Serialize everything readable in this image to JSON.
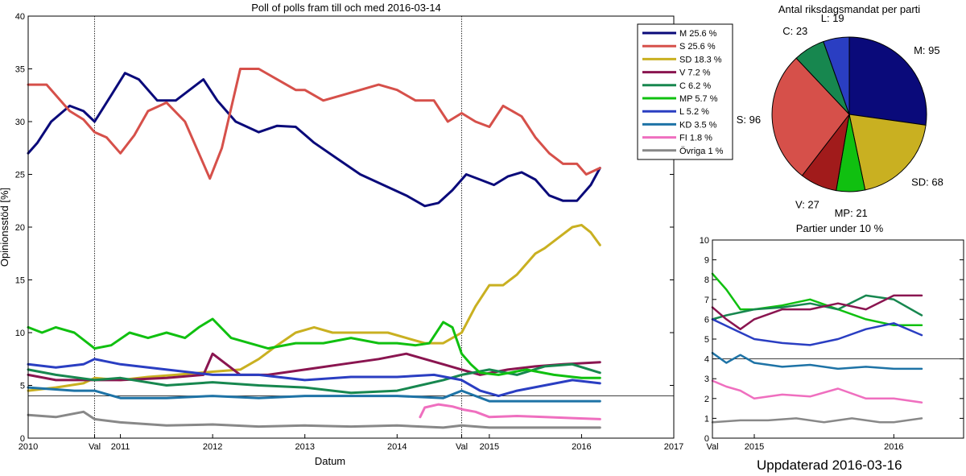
{
  "footer": "Uppdaterad 2016-03-16",
  "chart_data": [
    {
      "type": "line",
      "title": "Poll of polls fram till och med 2016-03-14",
      "xlabel": "Datum",
      "ylabel": "Opinionsstöd [%]",
      "xlim": [
        2010.0,
        2017.0
      ],
      "ylim": [
        0,
        40
      ],
      "yticks": [
        0,
        5,
        10,
        15,
        20,
        25,
        30,
        35,
        40
      ],
      "xticks": [
        {
          "x": 2010.0,
          "label": "2010"
        },
        {
          "x": 2010.72,
          "label": "Val"
        },
        {
          "x": 2011.0,
          "label": "2011"
        },
        {
          "x": 2012.0,
          "label": "2012"
        },
        {
          "x": 2013.0,
          "label": "2013"
        },
        {
          "x": 2014.0,
          "label": "2014"
        },
        {
          "x": 2014.7,
          "label": "Val"
        },
        {
          "x": 2015.0,
          "label": "2015"
        },
        {
          "x": 2016.0,
          "label": "2016"
        },
        {
          "x": 2017.0,
          "label": "2017"
        }
      ],
      "vlines": [
        2010.72,
        2014.7
      ],
      "hline": 4,
      "grid": false,
      "legend_position": "top-right",
      "series": [
        {
          "name": "M 25.6 %",
          "color": "#0a0a7a",
          "x": [
            2010.0,
            2010.1,
            2010.25,
            2010.45,
            2010.6,
            2010.72,
            2010.9,
            2011.05,
            2011.2,
            2011.4,
            2011.6,
            2011.75,
            2011.9,
            2012.05,
            2012.25,
            2012.5,
            2012.7,
            2012.9,
            2013.1,
            2013.35,
            2013.6,
            2013.85,
            2014.1,
            2014.3,
            2014.45,
            2014.6,
            2014.75,
            2014.9,
            2015.05,
            2015.2,
            2015.35,
            2015.5,
            2015.65,
            2015.8,
            2015.95,
            2016.1,
            2016.2
          ],
          "y": [
            27,
            28,
            30,
            31.5,
            31,
            30,
            32.5,
            34.6,
            34,
            32,
            32,
            33,
            34,
            32,
            30,
            29,
            29.6,
            29.5,
            28,
            26.5,
            25,
            24,
            23,
            22,
            22.3,
            23.5,
            25,
            24.5,
            24,
            24.8,
            25.2,
            24.5,
            23,
            22.5,
            22.5,
            24,
            25.6
          ]
        },
        {
          "name": "S 25.6 %",
          "color": "#d6504a",
          "x": [
            2010.0,
            2010.2,
            2010.45,
            2010.6,
            2010.72,
            2010.85,
            2011.0,
            2011.15,
            2011.3,
            2011.5,
            2011.7,
            2011.85,
            2011.97,
            2012.1,
            2012.3,
            2012.5,
            2012.7,
            2012.9,
            2013.0,
            2013.2,
            2013.4,
            2013.6,
            2013.8,
            2014.0,
            2014.2,
            2014.4,
            2014.55,
            2014.7,
            2014.85,
            2015.0,
            2015.15,
            2015.35,
            2015.5,
            2015.65,
            2015.8,
            2015.95,
            2016.05,
            2016.2
          ],
          "y": [
            33.5,
            33.5,
            31,
            30.2,
            29,
            28.5,
            27,
            28.7,
            31,
            31.8,
            30,
            27,
            24.6,
            27.5,
            35,
            35,
            34,
            33,
            33,
            32,
            32.5,
            33,
            33.5,
            33,
            32,
            32,
            30,
            30.8,
            30,
            29.5,
            31.5,
            30.5,
            28.5,
            27,
            26,
            26,
            25,
            25.6
          ]
        },
        {
          "name": "SD 18.3 %",
          "color": "#c9b021",
          "x": [
            2010.0,
            2010.3,
            2010.6,
            2010.72,
            2011.0,
            2011.3,
            2011.6,
            2012.0,
            2012.3,
            2012.5,
            2012.7,
            2012.9,
            2013.1,
            2013.3,
            2013.5,
            2013.7,
            2013.9,
            2014.1,
            2014.3,
            2014.5,
            2014.7,
            2014.85,
            2015.0,
            2015.15,
            2015.3,
            2015.5,
            2015.6,
            2015.75,
            2015.9,
            2016.0,
            2016.1,
            2016.2
          ],
          "y": [
            4.5,
            4.8,
            5.2,
            5.7,
            5.5,
            5.8,
            6,
            6.3,
            6.5,
            7.5,
            8.8,
            10,
            10.5,
            10,
            10,
            10,
            10,
            9.5,
            9,
            9,
            10,
            12.5,
            14.5,
            14.5,
            15.5,
            17.5,
            18,
            19,
            20,
            20.2,
            19.5,
            18.3
          ]
        },
        {
          "name": "V 7.2 %",
          "color": "#8a1550",
          "x": [
            2010.0,
            2010.3,
            2010.72,
            2011.0,
            2011.5,
            2011.9,
            2012.0,
            2012.3,
            2012.6,
            2013.0,
            2013.4,
            2013.8,
            2014.1,
            2014.3,
            2014.5,
            2014.7,
            2014.9,
            2015.2,
            2015.5,
            2015.8,
            2016.2
          ],
          "y": [
            6,
            5.5,
            5.5,
            5.5,
            5.7,
            6,
            8,
            6,
            6,
            6.5,
            7,
            7.5,
            8,
            7.5,
            7,
            6.5,
            6,
            6.5,
            6.8,
            7,
            7.2
          ]
        },
        {
          "name": "C 6.2 %",
          "color": "#17874f",
          "x": [
            2010.0,
            2010.3,
            2010.72,
            2011.0,
            2011.5,
            2012.0,
            2012.5,
            2013.0,
            2013.5,
            2014.0,
            2014.5,
            2014.7,
            2015.0,
            2015.3,
            2015.6,
            2015.9,
            2016.2
          ],
          "y": [
            6.5,
            6,
            5.5,
            5.7,
            5,
            5.3,
            5,
            4.8,
            4.3,
            4.5,
            5.5,
            6,
            6.5,
            6,
            6.8,
            7,
            6.2
          ]
        },
        {
          "name": "MP 5.7 %",
          "color": "#10c010",
          "x": [
            2010.0,
            2010.15,
            2010.3,
            2010.5,
            2010.72,
            2010.9,
            2011.1,
            2011.3,
            2011.5,
            2011.7,
            2011.85,
            2012.0,
            2012.2,
            2012.4,
            2012.6,
            2012.9,
            2013.2,
            2013.5,
            2013.8,
            2014.0,
            2014.2,
            2014.35,
            2014.5,
            2014.6,
            2014.7,
            2014.8,
            2014.9,
            2015.1,
            2015.4,
            2015.7,
            2016.0,
            2016.2
          ],
          "y": [
            10.5,
            10,
            10.5,
            10,
            8.5,
            8.8,
            10,
            9.5,
            10,
            9.5,
            10.5,
            11.3,
            9.5,
            9,
            8.5,
            9,
            9,
            9.5,
            9,
            9,
            8.8,
            9,
            11,
            10.5,
            8,
            7,
            6.2,
            6,
            6.5,
            6,
            5.7,
            5.7
          ]
        },
        {
          "name": "L 5.2 %",
          "color": "#2a3ec2",
          "x": [
            2010.0,
            2010.3,
            2010.6,
            2010.72,
            2011.0,
            2011.5,
            2012.0,
            2012.5,
            2013.0,
            2013.5,
            2014.0,
            2014.4,
            2014.7,
            2014.9,
            2015.1,
            2015.3,
            2015.6,
            2015.9,
            2016.2
          ],
          "y": [
            7,
            6.7,
            7,
            7.5,
            7,
            6.5,
            6,
            6,
            5.5,
            5.8,
            5.8,
            6,
            5.5,
            4.5,
            4,
            4.5,
            5,
            5.5,
            5.2
          ]
        },
        {
          "name": "KD 3.5 %",
          "color": "#1e73a6",
          "x": [
            2010.0,
            2010.5,
            2010.72,
            2011.0,
            2011.5,
            2012.0,
            2012.5,
            2013.0,
            2013.5,
            2014.0,
            2014.5,
            2014.7,
            2015.0,
            2015.5,
            2016.0,
            2016.2
          ],
          "y": [
            4.8,
            4.5,
            4.5,
            3.8,
            3.8,
            4,
            3.8,
            4,
            4,
            4,
            3.8,
            4.5,
            3.5,
            3.5,
            3.5,
            3.5
          ]
        },
        {
          "name": "FI 1.8 %",
          "color": "#ef6fbf",
          "x": [
            2014.25,
            2014.3,
            2014.45,
            2014.6,
            2014.72,
            2014.85,
            2015.0,
            2015.3,
            2015.6,
            2015.9,
            2016.2
          ],
          "y": [
            2,
            2.9,
            3.2,
            3.0,
            2.7,
            2.5,
            2.0,
            2.1,
            2.0,
            1.9,
            1.8
          ]
        },
        {
          "name": "Övriga 1 %",
          "color": "#888888",
          "x": [
            2010.0,
            2010.3,
            2010.6,
            2010.72,
            2011.0,
            2011.5,
            2012.0,
            2012.5,
            2013.0,
            2013.5,
            2014.0,
            2014.5,
            2014.7,
            2015.0,
            2015.5,
            2016.0,
            2016.2
          ],
          "y": [
            2.2,
            2,
            2.5,
            1.8,
            1.5,
            1.2,
            1.3,
            1.1,
            1.2,
            1.1,
            1.2,
            1,
            1.2,
            1,
            1,
            1,
            1
          ]
        }
      ]
    },
    {
      "type": "pie",
      "title": "Antal riksdagsmandat per parti",
      "slices": [
        {
          "label": "M: 95",
          "value": 95,
          "color": "#0a0a7a"
        },
        {
          "label": "SD: 68",
          "value": 68,
          "color": "#c9b021"
        },
        {
          "label": "MP: 21",
          "value": 21,
          "color": "#10c010"
        },
        {
          "label": "V: 27",
          "value": 27,
          "color": "#a11b1b"
        },
        {
          "label": "S: 96",
          "value": 96,
          "color": "#d6504a"
        },
        {
          "label": "C: 23",
          "value": 23,
          "color": "#17874f"
        },
        {
          "label": "L: 19",
          "value": 19,
          "color": "#2a3ec2"
        }
      ]
    },
    {
      "type": "line",
      "title": "Partier under 10 %",
      "xlim": [
        2014.7,
        2016.5
      ],
      "ylim": [
        0,
        10
      ],
      "yticks": [
        0,
        1,
        2,
        3,
        4,
        5,
        6,
        7,
        8,
        9,
        10
      ],
      "xticks": [
        {
          "x": 2014.7,
          "label": "Val"
        },
        {
          "x": 2015.0,
          "label": "2015"
        },
        {
          "x": 2016.0,
          "label": "2016"
        }
      ],
      "hline": 4,
      "grid": false,
      "series": [
        {
          "name": "MP",
          "color": "#10c010",
          "x": [
            2014.7,
            2014.8,
            2014.9,
            2015.0,
            2015.2,
            2015.4,
            2015.6,
            2015.8,
            2016.0,
            2016.2
          ],
          "y": [
            8.3,
            7.5,
            6.5,
            6.5,
            6.7,
            7,
            6.5,
            6,
            5.7,
            5.7
          ]
        },
        {
          "name": "C",
          "color": "#17874f",
          "x": [
            2014.7,
            2014.8,
            2015.0,
            2015.2,
            2015.4,
            2015.6,
            2015.8,
            2016.0,
            2016.2
          ],
          "y": [
            6,
            6.2,
            6.5,
            6.6,
            6.8,
            6.5,
            7.2,
            7,
            6.2
          ]
        },
        {
          "name": "V",
          "color": "#8a1550",
          "x": [
            2014.7,
            2014.8,
            2014.9,
            2015.0,
            2015.2,
            2015.4,
            2015.6,
            2015.8,
            2016.0,
            2016.2
          ],
          "y": [
            6.6,
            6,
            5.5,
            6,
            6.5,
            6.5,
            6.8,
            6.5,
            7.2,
            7.2
          ]
        },
        {
          "name": "L",
          "color": "#2a3ec2",
          "x": [
            2014.7,
            2014.85,
            2015.0,
            2015.2,
            2015.4,
            2015.6,
            2015.8,
            2016.0,
            2016.2
          ],
          "y": [
            6,
            5.5,
            5,
            4.8,
            4.7,
            5,
            5.5,
            5.8,
            5.2
          ]
        },
        {
          "name": "KD",
          "color": "#1e73a6",
          "x": [
            2014.7,
            2014.8,
            2014.9,
            2015.0,
            2015.2,
            2015.4,
            2015.6,
            2015.8,
            2016.0,
            2016.2
          ],
          "y": [
            4.3,
            3.8,
            4.2,
            3.8,
            3.6,
            3.7,
            3.5,
            3.6,
            3.5,
            3.5
          ]
        },
        {
          "name": "FI",
          "color": "#ef6fbf",
          "x": [
            2014.7,
            2014.8,
            2014.9,
            2015.0,
            2015.2,
            2015.4,
            2015.6,
            2015.8,
            2016.0,
            2016.2
          ],
          "y": [
            2.9,
            2.6,
            2.4,
            2.0,
            2.2,
            2.1,
            2.5,
            2.0,
            2.0,
            1.8
          ]
        },
        {
          "name": "Övriga",
          "color": "#888888",
          "x": [
            2014.7,
            2014.9,
            2015.1,
            2015.3,
            2015.5,
            2015.7,
            2015.9,
            2016.0,
            2016.2
          ],
          "y": [
            0.8,
            0.9,
            0.9,
            1.0,
            0.8,
            1.0,
            0.8,
            0.8,
            1.0
          ]
        }
      ]
    }
  ]
}
